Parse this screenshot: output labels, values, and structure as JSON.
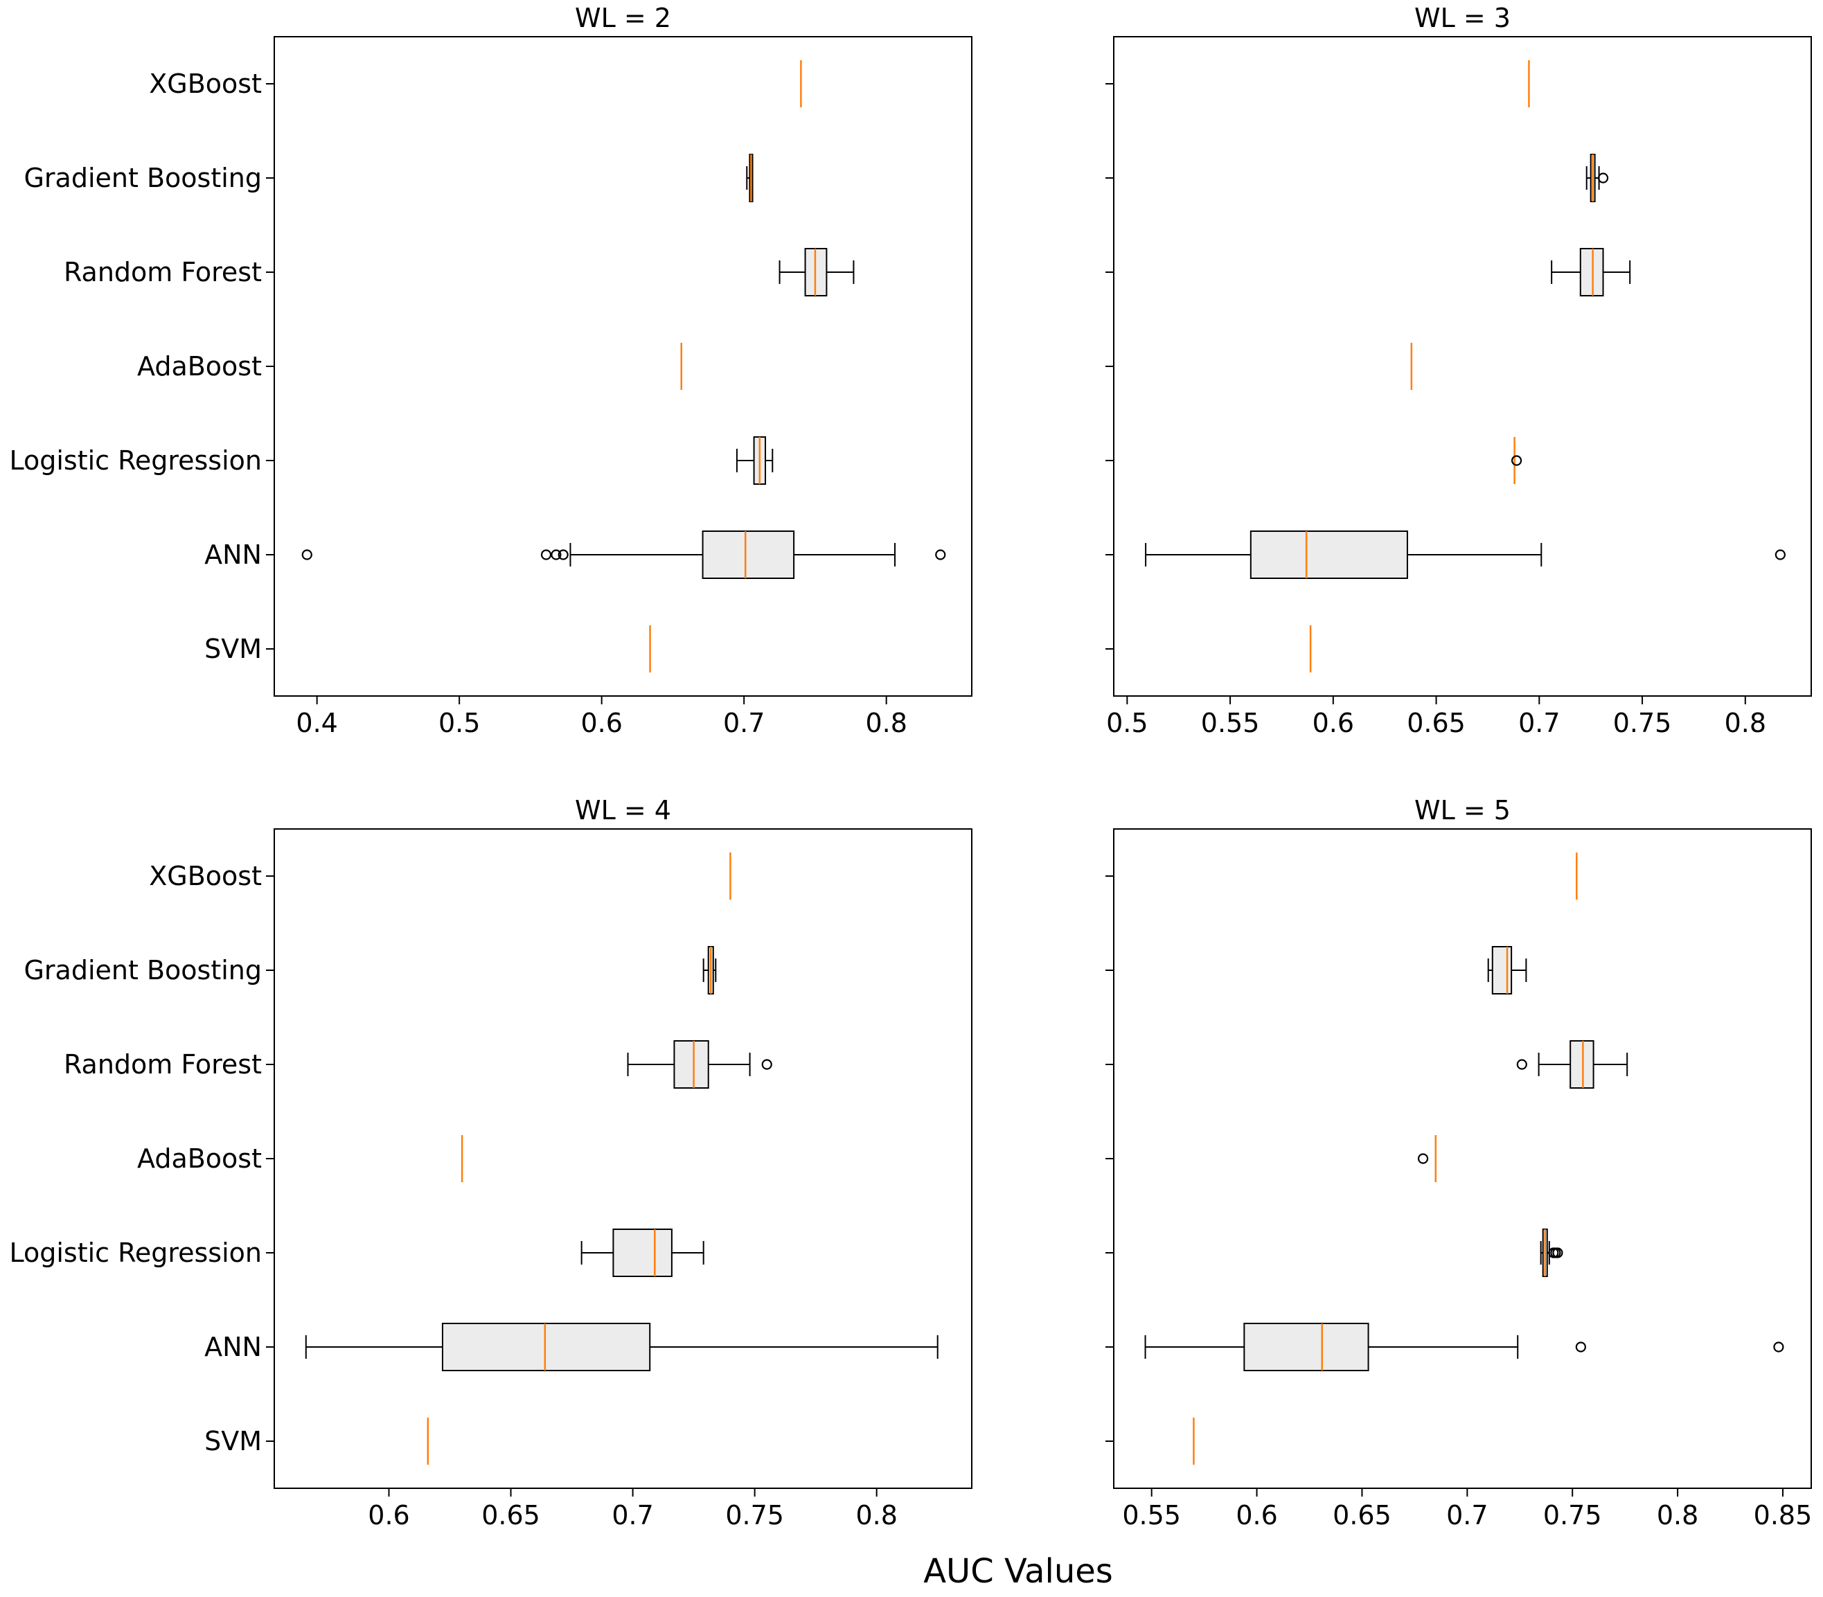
{
  "chart_data": {
    "type": "box",
    "orientation": "horizontal",
    "xlabel": "AUC Values",
    "categories": [
      "SVM",
      "ANN",
      "Logistic Regression",
      "AdaBoost",
      "Random Forest",
      "Gradient Boosting",
      "XGBoost"
    ],
    "colors": {
      "median": "#ff7f0e",
      "box_fill": "#ececec",
      "line": "#000000"
    },
    "panels": [
      {
        "title": "WL = 2",
        "xlim": [
          0.37,
          0.86
        ],
        "ticks": [
          0.4,
          0.5,
          0.6,
          0.7,
          0.8
        ],
        "tick_labels": [
          "0.4",
          "0.5",
          "0.6",
          "0.7",
          "0.8"
        ],
        "boxes": [
          {
            "category": "SVM",
            "min": 0.634,
            "q1": 0.634,
            "median": 0.634,
            "q3": 0.634,
            "max": 0.634,
            "outliers": []
          },
          {
            "category": "ANN",
            "min": 0.578,
            "q1": 0.671,
            "median": 0.701,
            "q3": 0.735,
            "max": 0.806,
            "outliers": [
              0.393,
              0.561,
              0.568,
              0.573,
              0.838
            ]
          },
          {
            "category": "Logistic Regression",
            "min": 0.695,
            "q1": 0.707,
            "median": 0.711,
            "q3": 0.715,
            "max": 0.72,
            "outliers": []
          },
          {
            "category": "AdaBoost",
            "min": 0.656,
            "q1": 0.656,
            "median": 0.656,
            "q3": 0.656,
            "max": 0.656,
            "outliers": []
          },
          {
            "category": "Random Forest",
            "min": 0.725,
            "q1": 0.743,
            "median": 0.75,
            "q3": 0.758,
            "max": 0.777,
            "outliers": []
          },
          {
            "category": "Gradient Boosting",
            "min": 0.702,
            "q1": 0.704,
            "median": 0.705,
            "q3": 0.706,
            "max": 0.706,
            "outliers": []
          },
          {
            "category": "XGBoost",
            "min": 0.74,
            "q1": 0.74,
            "median": 0.74,
            "q3": 0.74,
            "max": 0.74,
            "outliers": []
          }
        ]
      },
      {
        "title": "WL = 3",
        "xlim": [
          0.4935,
          0.832
        ],
        "ticks": [
          0.5,
          0.55,
          0.6,
          0.65,
          0.7,
          0.75,
          0.8
        ],
        "tick_labels": [
          "0.5",
          "0.55",
          "0.6",
          "0.65",
          "0.7",
          "0.75",
          "0.8"
        ],
        "boxes": [
          {
            "category": "SVM",
            "min": 0.589,
            "q1": 0.589,
            "median": 0.589,
            "q3": 0.589,
            "max": 0.589,
            "outliers": []
          },
          {
            "category": "ANN",
            "min": 0.509,
            "q1": 0.56,
            "median": 0.587,
            "q3": 0.636,
            "max": 0.701,
            "outliers": [
              0.817
            ]
          },
          {
            "category": "Logistic Regression",
            "min": 0.688,
            "q1": 0.688,
            "median": 0.688,
            "q3": 0.688,
            "max": 0.688,
            "outliers": [
              0.689
            ]
          },
          {
            "category": "AdaBoost",
            "min": 0.638,
            "q1": 0.638,
            "median": 0.638,
            "q3": 0.638,
            "max": 0.638,
            "outliers": []
          },
          {
            "category": "Random Forest",
            "min": 0.706,
            "q1": 0.72,
            "median": 0.726,
            "q3": 0.731,
            "max": 0.744,
            "outliers": []
          },
          {
            "category": "Gradient Boosting",
            "min": 0.723,
            "q1": 0.725,
            "median": 0.726,
            "q3": 0.727,
            "max": 0.729,
            "outliers": [
              0.731
            ]
          },
          {
            "category": "XGBoost",
            "min": 0.695,
            "q1": 0.695,
            "median": 0.695,
            "q3": 0.695,
            "max": 0.695,
            "outliers": []
          }
        ]
      },
      {
        "title": "WL = 4",
        "xlim": [
          0.553,
          0.839
        ],
        "ticks": [
          0.6,
          0.65,
          0.7,
          0.75,
          0.8
        ],
        "tick_labels": [
          "0.6",
          "0.65",
          "0.7",
          "0.75",
          "0.8"
        ],
        "boxes": [
          {
            "category": "SVM",
            "min": 0.616,
            "q1": 0.616,
            "median": 0.616,
            "q3": 0.616,
            "max": 0.616,
            "outliers": []
          },
          {
            "category": "ANN",
            "min": 0.566,
            "q1": 0.622,
            "median": 0.664,
            "q3": 0.707,
            "max": 0.825,
            "outliers": []
          },
          {
            "category": "Logistic Regression",
            "min": 0.679,
            "q1": 0.692,
            "median": 0.709,
            "q3": 0.716,
            "max": 0.729,
            "outliers": []
          },
          {
            "category": "AdaBoost",
            "min": 0.63,
            "q1": 0.63,
            "median": 0.63,
            "q3": 0.63,
            "max": 0.63,
            "outliers": []
          },
          {
            "category": "Random Forest",
            "min": 0.698,
            "q1": 0.717,
            "median": 0.725,
            "q3": 0.731,
            "max": 0.748,
            "outliers": [
              0.755
            ]
          },
          {
            "category": "Gradient Boosting",
            "min": 0.729,
            "q1": 0.731,
            "median": 0.732,
            "q3": 0.733,
            "max": 0.734,
            "outliers": []
          },
          {
            "category": "XGBoost",
            "min": 0.74,
            "q1": 0.74,
            "median": 0.74,
            "q3": 0.74,
            "max": 0.74,
            "outliers": []
          }
        ]
      },
      {
        "title": "WL = 5",
        "xlim": [
          0.532,
          0.8635
        ],
        "ticks": [
          0.55,
          0.6,
          0.65,
          0.7,
          0.75,
          0.8,
          0.85
        ],
        "tick_labels": [
          "0.55",
          "0.6",
          "0.65",
          "0.7",
          "0.75",
          "0.8",
          "0.85"
        ],
        "boxes": [
          {
            "category": "SVM",
            "min": 0.57,
            "q1": 0.57,
            "median": 0.57,
            "q3": 0.57,
            "max": 0.57,
            "outliers": []
          },
          {
            "category": "ANN",
            "min": 0.547,
            "q1": 0.594,
            "median": 0.631,
            "q3": 0.653,
            "max": 0.724,
            "outliers": [
              0.754,
              0.848
            ]
          },
          {
            "category": "Logistic Regression",
            "min": 0.735,
            "q1": 0.736,
            "median": 0.737,
            "q3": 0.738,
            "max": 0.739,
            "outliers": [
              0.741,
              0.742,
              0.743
            ]
          },
          {
            "category": "AdaBoost",
            "min": 0.685,
            "q1": 0.685,
            "median": 0.685,
            "q3": 0.685,
            "max": 0.685,
            "outliers": [
              0.679
            ]
          },
          {
            "category": "Random Forest",
            "min": 0.734,
            "q1": 0.749,
            "median": 0.755,
            "q3": 0.76,
            "max": 0.776,
            "outliers": [
              0.726
            ]
          },
          {
            "category": "Gradient Boosting",
            "min": 0.71,
            "q1": 0.712,
            "median": 0.719,
            "q3": 0.721,
            "max": 0.728,
            "outliers": []
          },
          {
            "category": "XGBoost",
            "min": 0.752,
            "q1": 0.752,
            "median": 0.752,
            "q3": 0.752,
            "max": 0.752,
            "outliers": []
          }
        ]
      }
    ]
  }
}
